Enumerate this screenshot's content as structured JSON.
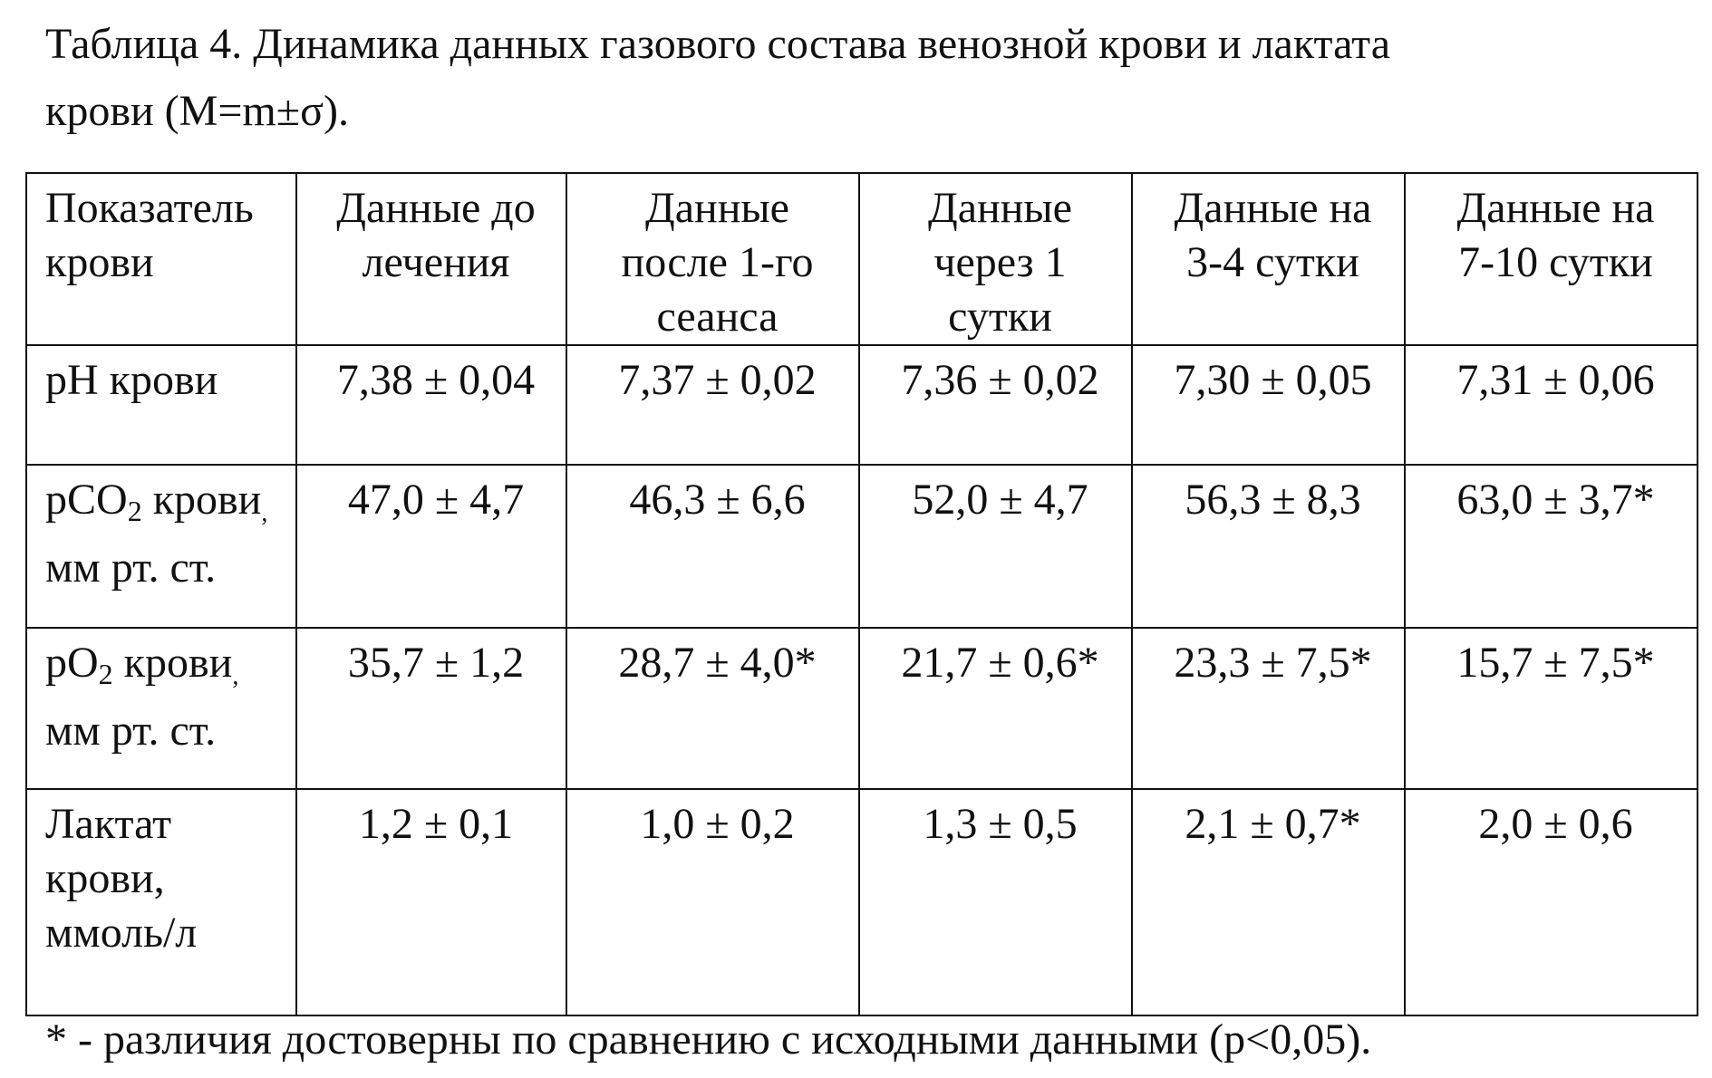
{
  "caption": {
    "line1": "Таблица 4.  Динамика данных  газового состава венозной крови и лактата",
    "line2": "крови (M=m±σ)."
  },
  "table": {
    "headers": [
      [
        "Показатель",
        "крови"
      ],
      [
        "Данные до",
        "лечения"
      ],
      [
        "Данные",
        "после 1-го",
        "сеанса"
      ],
      [
        "Данные",
        "через 1",
        "сутки"
      ],
      [
        "Данные на",
        "3-4 сутки"
      ],
      [
        "Данные на",
        "7-10 сутки"
      ]
    ],
    "rows": [
      {
        "label_a": "pH крови",
        "values": [
          "7,38 ± 0,04",
          "7,37 ± 0,02",
          "7,36 ± 0,02",
          "7,30 ± 0,05",
          "7,31 ± 0,06"
        ]
      },
      {
        "label_a": "pCO",
        "label_sub": "2",
        "label_b": " крови",
        "label_comma": ",",
        "label_c": "мм рт. ст.",
        "values": [
          "47,0 ± 4,7",
          "46,3 ± 6,6",
          "52,0 ± 4,7",
          "56,3 ± 8,3",
          "63,0 ± 3,7*"
        ]
      },
      {
        "label_a": "pO",
        "label_sub": "2",
        "label_b": " крови",
        "label_comma": ",",
        "label_c": "мм рт. ст.",
        "values": [
          "35,7 ± 1,2",
          "28,7 ± 4,0*",
          "21,7 ± 0,6*",
          "23,3 ± 7,5*",
          "15,7 ± 7,5*"
        ]
      },
      {
        "label_lines": [
          "Лактат",
          "крови,",
          "ммоль/л"
        ],
        "values": [
          "1,2 ± 0,1",
          "1,0 ± 0,2",
          "1,3 ± 0,5",
          "2,1 ± 0,7*",
          "2,0 ± 0,6"
        ]
      }
    ]
  },
  "footnote": "*  - различия достоверны по сравнению с исходными данными (p<0,05)."
}
